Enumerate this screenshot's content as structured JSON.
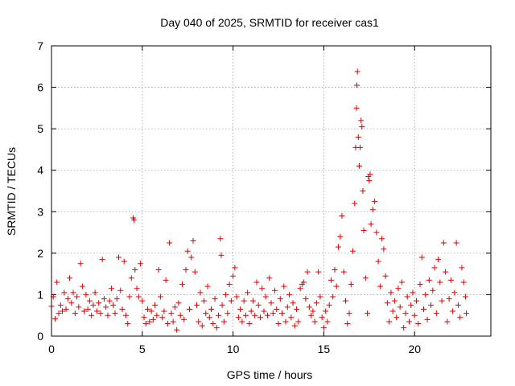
{
  "chart_data": {
    "type": "scatter",
    "title": "Day 040 of 2025, SRMTID for receiver cas1",
    "xlabel": "GPS time / hours",
    "ylabel": "SRMTID / TECUs",
    "xlim": [
      0,
      24.2
    ],
    "ylim": [
      0,
      7
    ],
    "x_ticks": [
      0,
      5,
      10,
      15,
      20
    ],
    "x_tick_labels": [
      "0",
      "5",
      "10",
      "15",
      "20"
    ],
    "y_ticks": [
      0,
      1,
      2,
      3,
      4,
      5,
      6,
      7
    ],
    "y_tick_labels": [
      "0",
      "1",
      "2",
      "3",
      "4",
      "5",
      "6",
      "7"
    ],
    "grid": true,
    "marker": "+",
    "marker_color": "#e00000",
    "series": [
      {
        "name": "SRMTID",
        "points": [
          [
            0.0,
            0.72
          ],
          [
            0.1,
            0.95
          ],
          [
            0.2,
            0.42
          ],
          [
            0.3,
            1.3
          ],
          [
            0.4,
            0.55
          ],
          [
            0.5,
            0.75
          ],
          [
            0.6,
            0.6
          ],
          [
            0.7,
            1.05
          ],
          [
            0.8,
            0.65
          ],
          [
            0.9,
            0.9
          ],
          [
            1.0,
            1.4
          ],
          [
            1.1,
            0.8
          ],
          [
            1.2,
            1.05
          ],
          [
            1.3,
            0.55
          ],
          [
            1.4,
            0.95
          ],
          [
            1.5,
            0.7
          ],
          [
            1.6,
            1.75
          ],
          [
            1.7,
            1.2
          ],
          [
            1.8,
            0.6
          ],
          [
            1.9,
            1.0
          ],
          [
            2.0,
            0.65
          ],
          [
            2.1,
            0.85
          ],
          [
            2.2,
            0.5
          ],
          [
            2.3,
            0.75
          ],
          [
            2.4,
            1.05
          ],
          [
            2.5,
            0.6
          ],
          [
            2.6,
            0.8
          ],
          [
            2.7,
            0.55
          ],
          [
            2.8,
            1.85
          ],
          [
            2.9,
            0.9
          ],
          [
            3.0,
            0.7
          ],
          [
            3.1,
            0.5
          ],
          [
            3.2,
            0.85
          ],
          [
            3.3,
            1.15
          ],
          [
            3.4,
            0.75
          ],
          [
            3.5,
            0.55
          ],
          [
            3.6,
            0.9
          ],
          [
            3.7,
            1.9
          ],
          [
            3.8,
            1.1
          ],
          [
            3.9,
            0.65
          ],
          [
            4.0,
            1.8
          ],
          [
            4.1,
            0.5
          ],
          [
            4.2,
            0.3
          ],
          [
            4.3,
            0.95
          ],
          [
            4.4,
            1.4
          ],
          [
            4.5,
            2.85
          ],
          [
            4.55,
            2.8
          ],
          [
            4.6,
            1.6
          ],
          [
            4.7,
            1.15
          ],
          [
            4.8,
            0.95
          ],
          [
            4.9,
            1.75
          ],
          [
            5.0,
            0.85
          ],
          [
            5.1,
            0.45
          ],
          [
            5.2,
            0.3
          ],
          [
            5.3,
            0.65
          ],
          [
            5.4,
            0.35
          ],
          [
            5.5,
            0.6
          ],
          [
            5.6,
            0.4
          ],
          [
            5.7,
            0.75
          ],
          [
            5.8,
            0.5
          ],
          [
            5.9,
            1.6
          ],
          [
            6.0,
            0.95
          ],
          [
            6.1,
            0.45
          ],
          [
            6.2,
            0.6
          ],
          [
            6.3,
            1.35
          ],
          [
            6.4,
            0.3
          ],
          [
            6.5,
            2.25
          ],
          [
            6.6,
            0.55
          ],
          [
            6.7,
            0.35
          ],
          [
            6.8,
            0.7
          ],
          [
            6.9,
            0.15
          ],
          [
            7.0,
            0.8
          ],
          [
            7.1,
            0.5
          ],
          [
            7.2,
            1.25
          ],
          [
            7.3,
            0.4
          ],
          [
            7.4,
            1.6
          ],
          [
            7.5,
            2.05
          ],
          [
            7.6,
            0.65
          ],
          [
            7.7,
            1.9
          ],
          [
            7.8,
            2.3
          ],
          [
            7.9,
            1.55
          ],
          [
            8.0,
            0.75
          ],
          [
            8.1,
            0.35
          ],
          [
            8.2,
            1.05
          ],
          [
            8.3,
            0.25
          ],
          [
            8.4,
            0.85
          ],
          [
            8.5,
            0.55
          ],
          [
            8.6,
            1.2
          ],
          [
            8.7,
            0.45
          ],
          [
            8.8,
            0.65
          ],
          [
            8.9,
            0.3
          ],
          [
            9.0,
            0.9
          ],
          [
            9.1,
            0.2
          ],
          [
            9.2,
            0.5
          ],
          [
            9.3,
            2.35
          ],
          [
            9.35,
            1.95
          ],
          [
            9.4,
            0.75
          ],
          [
            9.5,
            0.35
          ],
          [
            9.6,
            1.0
          ],
          [
            9.7,
            0.55
          ],
          [
            9.8,
            1.25
          ],
          [
            9.9,
            0.85
          ],
          [
            10.0,
            1.45
          ],
          [
            10.1,
            1.65
          ],
          [
            10.2,
            0.95
          ],
          [
            10.3,
            0.45
          ],
          [
            10.4,
            0.65
          ],
          [
            10.5,
            0.35
          ],
          [
            10.6,
            0.85
          ],
          [
            10.7,
            0.5
          ],
          [
            10.8,
            1.05
          ],
          [
            10.9,
            0.3
          ],
          [
            11.0,
            0.6
          ],
          [
            11.1,
            0.85
          ],
          [
            11.2,
            0.5
          ],
          [
            11.3,
            1.3
          ],
          [
            11.4,
            0.75
          ],
          [
            11.5,
            0.45
          ],
          [
            11.6,
            1.15
          ],
          [
            11.7,
            0.6
          ],
          [
            11.8,
            0.95
          ],
          [
            11.9,
            0.5
          ],
          [
            12.0,
            1.4
          ],
          [
            12.1,
            0.8
          ],
          [
            12.2,
            0.55
          ],
          [
            12.3,
            1.1
          ],
          [
            12.4,
            0.65
          ],
          [
            12.5,
            0.3
          ],
          [
            12.6,
            0.9
          ],
          [
            12.7,
            0.55
          ],
          [
            12.8,
            1.2
          ],
          [
            12.9,
            0.35
          ],
          [
            13.0,
            0.7
          ],
          [
            13.1,
            1.0
          ],
          [
            13.2,
            0.45
          ],
          [
            13.3,
            0.8
          ],
          [
            13.4,
            0.25
          ],
          [
            13.5,
            0.65
          ],
          [
            13.6,
            0.35
          ],
          [
            13.7,
            1.15
          ],
          [
            13.8,
            1.25
          ],
          [
            13.9,
            1.3
          ],
          [
            14.0,
            0.9
          ],
          [
            14.1,
            1.55
          ],
          [
            14.2,
            0.7
          ],
          [
            14.3,
            0.5
          ],
          [
            14.4,
            0.6
          ],
          [
            14.5,
            0.35
          ],
          [
            14.6,
            0.8
          ],
          [
            14.7,
            1.55
          ],
          [
            14.8,
            0.95
          ],
          [
            14.9,
            0.45
          ],
          [
            15.0,
            0.2
          ],
          [
            15.1,
            0.6
          ],
          [
            15.2,
            0.35
          ],
          [
            15.3,
            0.75
          ],
          [
            15.4,
            1.35
          ],
          [
            15.5,
            0.95
          ],
          [
            15.6,
            1.6
          ],
          [
            15.7,
            1.2
          ],
          [
            15.8,
            2.15
          ],
          [
            15.9,
            2.4
          ],
          [
            16.0,
            2.9
          ],
          [
            16.1,
            1.55
          ],
          [
            16.2,
            0.85
          ],
          [
            16.3,
            0.3
          ],
          [
            16.4,
            0.55
          ],
          [
            16.5,
            1.25
          ],
          [
            16.6,
            2.05
          ],
          [
            16.7,
            3.2
          ],
          [
            16.75,
            4.55
          ],
          [
            16.8,
            5.5
          ],
          [
            16.82,
            6.05
          ],
          [
            16.85,
            6.38
          ],
          [
            16.9,
            4.8
          ],
          [
            16.95,
            4.1
          ],
          [
            17.0,
            4.55
          ],
          [
            17.05,
            5.2
          ],
          [
            17.1,
            5.05
          ],
          [
            17.15,
            3.5
          ],
          [
            17.2,
            2.55
          ],
          [
            17.3,
            1.4
          ],
          [
            17.4,
            0.55
          ],
          [
            17.45,
            3.85
          ],
          [
            17.5,
            3.75
          ],
          [
            17.55,
            3.9
          ],
          [
            17.6,
            2.7
          ],
          [
            17.7,
            3.05
          ],
          [
            17.8,
            3.25
          ],
          [
            17.9,
            2.5
          ],
          [
            18.0,
            1.8
          ],
          [
            18.1,
            1.2
          ],
          [
            18.2,
            2.35
          ],
          [
            18.3,
            2.1
          ],
          [
            18.4,
            1.45
          ],
          [
            18.5,
            0.8
          ],
          [
            18.6,
            0.35
          ],
          [
            18.7,
            1.05
          ],
          [
            18.8,
            0.6
          ],
          [
            18.9,
            0.85
          ],
          [
            19.0,
            0.45
          ],
          [
            19.1,
            1.15
          ],
          [
            19.2,
            0.7
          ],
          [
            19.3,
            1.3
          ],
          [
            19.4,
            0.2
          ],
          [
            19.5,
            0.55
          ],
          [
            19.6,
            0.95
          ],
          [
            19.7,
            0.35
          ],
          [
            19.8,
            0.75
          ],
          [
            19.9,
            1.05
          ],
          [
            20.0,
            0.5
          ],
          [
            20.1,
            0.85
          ],
          [
            20.2,
            0.3
          ],
          [
            20.3,
            1.25
          ],
          [
            20.4,
            1.9
          ],
          [
            20.5,
            0.65
          ],
          [
            20.6,
            1.0
          ],
          [
            20.7,
            0.4
          ],
          [
            20.8,
            1.35
          ],
          [
            20.9,
            0.75
          ],
          [
            21.0,
            1.1
          ],
          [
            21.1,
            1.65
          ],
          [
            21.2,
            0.55
          ],
          [
            21.3,
            1.85
          ],
          [
            21.4,
            1.3
          ],
          [
            21.5,
            0.85
          ],
          [
            21.6,
            2.25
          ],
          [
            21.7,
            1.55
          ],
          [
            21.8,
            0.35
          ],
          [
            21.9,
            0.9
          ],
          [
            22.0,
            1.35
          ],
          [
            22.1,
            0.6
          ],
          [
            22.2,
            1.05
          ],
          [
            22.3,
            2.25
          ],
          [
            22.4,
            0.75
          ],
          [
            22.5,
            0.45
          ],
          [
            22.6,
            1.65
          ],
          [
            22.7,
            1.3
          ],
          [
            22.8,
            0.95
          ],
          [
            22.85,
            0.55
          ]
        ]
      }
    ]
  }
}
